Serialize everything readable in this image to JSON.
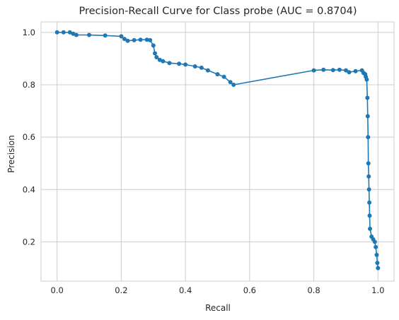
{
  "chart_data": {
    "type": "line",
    "title": "Precision-Recall Curve for Class probe (AUC = 0.8704)",
    "xlabel": "Recall",
    "ylabel": "Precision",
    "xlim": [
      -0.05,
      1.05
    ],
    "ylim": [
      0.05,
      1.04
    ],
    "xticks": [
      "0.0",
      "0.2",
      "0.4",
      "0.6",
      "0.8",
      "1.0"
    ],
    "yticks": [
      "0.2",
      "0.4",
      "0.6",
      "0.8",
      "1.0"
    ],
    "grid": true,
    "series": [
      {
        "color": "#1f77b4",
        "marker": "circle",
        "x": [
          0.0,
          0.02,
          0.04,
          0.05,
          0.06,
          0.1,
          0.15,
          0.2,
          0.21,
          0.22,
          0.24,
          0.26,
          0.28,
          0.29,
          0.3,
          0.305,
          0.31,
          0.32,
          0.33,
          0.35,
          0.38,
          0.4,
          0.43,
          0.45,
          0.47,
          0.5,
          0.52,
          0.54,
          0.55,
          0.8,
          0.83,
          0.86,
          0.88,
          0.9,
          0.91,
          0.93,
          0.95,
          0.955,
          0.96,
          0.962,
          0.965,
          0.967,
          0.968,
          0.969,
          0.97,
          0.971,
          0.972,
          0.973,
          0.974,
          0.975,
          0.98,
          0.985,
          0.99,
          0.993,
          0.996,
          0.998,
          1.0
        ],
        "y": [
          1.0,
          1.0,
          1.0,
          0.995,
          0.99,
          0.99,
          0.988,
          0.985,
          0.975,
          0.968,
          0.97,
          0.972,
          0.972,
          0.97,
          0.95,
          0.92,
          0.905,
          0.895,
          0.89,
          0.883,
          0.88,
          0.877,
          0.87,
          0.865,
          0.855,
          0.84,
          0.83,
          0.81,
          0.8,
          0.855,
          0.857,
          0.856,
          0.857,
          0.855,
          0.848,
          0.852,
          0.855,
          0.845,
          0.84,
          0.83,
          0.82,
          0.75,
          0.68,
          0.6,
          0.5,
          0.45,
          0.4,
          0.35,
          0.3,
          0.25,
          0.22,
          0.21,
          0.2,
          0.18,
          0.15,
          0.12,
          0.1
        ]
      }
    ]
  }
}
